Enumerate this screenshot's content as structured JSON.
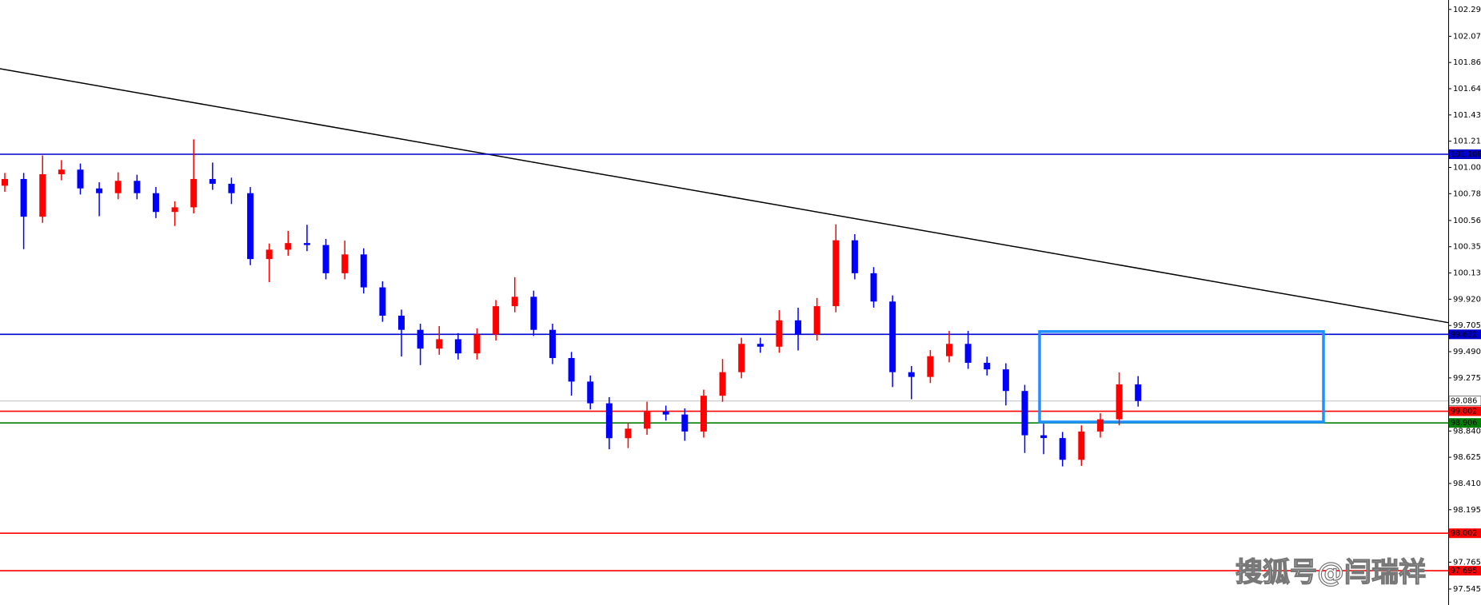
{
  "chart_data": {
    "type": "candlestick",
    "watermark": "搜狐号@闫瑞祥",
    "ylim": [
      97.414,
      102.372
    ],
    "yticks": [
      102.295,
      102.075,
      {
        "value": 101.86,
        "label": "101.860"
      },
      101.645,
      {
        "value": 101.43,
        "label": "101.430"
      },
      101.215,
      {
        "value": 101,
        "label": "101.000"
      },
      100.785,
      100.565,
      {
        "value": 100.35,
        "label": "100.350"
      },
      100.135,
      {
        "value": 99.92,
        "label": "99.920"
      },
      99.705,
      {
        "value": 99.49,
        "label": "99.490"
      },
      99.275,
      {
        "value": 98.84,
        "label": "98.840"
      },
      98.625,
      {
        "value": 98.41,
        "label": "98.410"
      },
      98.195,
      97.765,
      97.545
    ],
    "up_color": "#ff0000",
    "down_color": "#0000ff",
    "open": [
      100.85,
      100.905,
      100.596,
      100.944,
      100.982,
      100.828,
      100.789,
      100.89,
      100.789,
      100.635,
      100.673,
      100.905,
      100.866,
      100.789,
      100.249,
      100.326,
      100.38,
      100.364,
      100.133,
      100.287,
      100.017,
      99.785,
      99.669,
      99.515,
      99.592,
      99.476,
      99.631,
      99.863,
      99.94,
      99.669,
      99.438,
      99.245,
      99.067,
      98.781,
      98.859,
      98.998,
      98.975,
      98.836,
      99.129,
      99.322,
      99.554,
      99.531,
      99.747,
      99.631,
      99.863,
      100.403,
      100.133,
      99.901,
      99.322,
      99.283,
      99.453,
      99.554,
      99.399,
      99.345,
      99.168,
      98.805,
      98.782,
      98.604,
      98.836,
      98.936,
      99.222
    ],
    "high": [
      100.955,
      100.955,
      101.098,
      101.06,
      101.032,
      100.878,
      100.96,
      100.94,
      100.839,
      100.723,
      101.23,
      101.04,
      100.916,
      100.839,
      100.376,
      100.48,
      100.53,
      100.414,
      100.4,
      100.337,
      100.067,
      99.835,
      99.719,
      99.7,
      99.642,
      99.681,
      99.913,
      100.1,
      99.99,
      99.719,
      99.488,
      99.295,
      99.117,
      98.909,
      99.08,
      99.048,
      99.025,
      99.179,
      99.43,
      99.604,
      99.604,
      99.83,
      99.85,
      99.93,
      100.534,
      100.453,
      100.183,
      99.951,
      99.372,
      99.503,
      99.66,
      99.66,
      99.449,
      99.395,
      99.218,
      98.9,
      98.832,
      98.886,
      98.986,
      99.32,
      99.29
    ],
    "low": [
      100.8,
      100.33,
      100.546,
      100.894,
      100.778,
      100.6,
      100.739,
      100.739,
      100.585,
      100.52,
      100.623,
      100.816,
      100.7,
      100.199,
      100.06,
      100.276,
      100.314,
      100.083,
      100.083,
      99.967,
      99.735,
      99.45,
      99.38,
      99.465,
      99.426,
      99.426,
      99.581,
      99.813,
      99.619,
      99.388,
      99.13,
      99.017,
      98.69,
      98.7,
      98.809,
      98.925,
      98.76,
      98.786,
      99.079,
      99.272,
      99.481,
      99.481,
      99.5,
      99.581,
      99.813,
      100.083,
      99.851,
      99.2,
      99.1,
      99.233,
      99.403,
      99.349,
      99.295,
      99.05,
      98.66,
      98.65,
      98.55,
      98.554,
      98.786,
      98.886,
      99.04
    ],
    "close": [
      100.905,
      100.596,
      100.944,
      100.982,
      100.828,
      100.789,
      100.89,
      100.789,
      100.635,
      100.673,
      100.905,
      100.866,
      100.789,
      100.249,
      100.326,
      100.38,
      100.364,
      100.133,
      100.287,
      100.017,
      99.785,
      99.669,
      99.515,
      99.592,
      99.476,
      99.631,
      99.863,
      99.94,
      99.669,
      99.438,
      99.245,
      99.067,
      98.781,
      98.859,
      98.998,
      98.975,
      98.836,
      99.129,
      99.322,
      99.554,
      99.531,
      99.747,
      99.631,
      99.863,
      100.403,
      100.133,
      99.901,
      99.322,
      99.283,
      99.453,
      99.554,
      99.399,
      99.345,
      99.168,
      98.805,
      98.782,
      98.604,
      98.836,
      98.936,
      99.222,
      99.086
    ],
    "levels": [
      {
        "value": 101.108,
        "color": "#0000cc",
        "text_color": "#ffffff"
      },
      {
        "value": 99.632,
        "color": "#0000cc",
        "text_color": "#ffffff"
      },
      {
        "value": 99.086,
        "color": "#c0c0c0",
        "text_color": "#000000"
      },
      {
        "value": 99.002,
        "color": "#ff0000",
        "text_color": "#ffffff"
      },
      {
        "value": 98.906,
        "color": "#008000",
        "text_color": "#ffffff"
      },
      {
        "value": 98.002,
        "color": "#ff0000",
        "text_color": "#ffffff"
      },
      {
        "value": 97.695,
        "color": "#ff0000",
        "text_color": "#ffffff"
      }
    ],
    "trendline": {
      "start": 101.809,
      "end": 99.728,
      "color": "#000000"
    },
    "box": {
      "top": 99.655,
      "bottom": 98.914,
      "color": "#1e90ff"
    }
  }
}
